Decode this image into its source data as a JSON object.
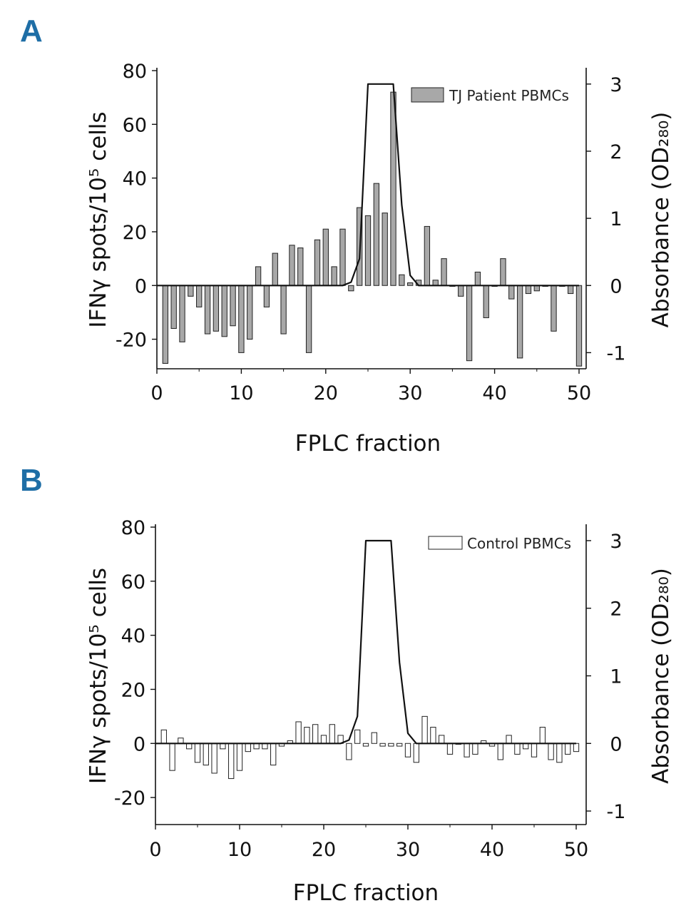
{
  "chart_data": [
    {
      "panel_label": "A",
      "type": "bar",
      "xlabel": "FPLC fraction",
      "ylabel": "IFNγ spots/10⁵ cells",
      "ylabel_right": "Absorbance (OD₂₈₀)",
      "xlim": [
        0,
        50
      ],
      "ylim": [
        -31,
        80
      ],
      "y2lim": [
        -1.24,
        3.2
      ],
      "x_ticks": [
        "0",
        "10",
        "20",
        "30",
        "40",
        "50"
      ],
      "y_ticks": [
        "-20",
        "0",
        "20",
        "40",
        "60",
        "80"
      ],
      "y2_ticks": [
        "-1",
        "0",
        "1",
        "2",
        "3"
      ],
      "legend": {
        "label": "TJ Patient PBMCs",
        "position": "top-right"
      },
      "series": [
        {
          "name": "TJ Patient PBMCs",
          "kind": "bar",
          "fill": "#a8a8a8",
          "x": [
            1,
            2,
            3,
            4,
            5,
            6,
            7,
            8,
            9,
            10,
            11,
            12,
            13,
            14,
            15,
            16,
            17,
            18,
            19,
            20,
            21,
            22,
            23,
            24,
            25,
            26,
            27,
            28,
            29,
            30,
            31,
            32,
            33,
            34,
            35,
            36,
            37,
            38,
            39,
            40,
            41,
            42,
            43,
            44,
            45,
            46,
            47,
            48,
            49,
            50
          ],
          "values": [
            -29,
            -16,
            -21,
            -4,
            -8,
            -18,
            -17,
            -19,
            -15,
            -25,
            -20,
            7,
            -8,
            12,
            -18,
            15,
            14,
            -25,
            17,
            21,
            7,
            21,
            -2,
            29,
            26,
            38,
            27,
            72,
            4,
            1,
            2,
            22,
            2,
            10,
            0,
            -4,
            -28,
            5,
            -12,
            0,
            10,
            -5,
            -27,
            -3,
            -2,
            0,
            -17,
            0,
            -3,
            -30
          ]
        },
        {
          "name": "Absorbance",
          "kind": "line",
          "color": "#111111",
          "x": [
            0,
            22,
            23,
            24,
            25,
            26,
            27,
            28,
            29,
            30,
            31,
            50
          ],
          "values": [
            0,
            0,
            0.05,
            0.4,
            3,
            3,
            3,
            3,
            1.2,
            0.15,
            0,
            0
          ]
        }
      ]
    },
    {
      "panel_label": "B",
      "type": "bar",
      "xlabel": "FPLC fraction",
      "ylabel": "IFNγ spots/10⁵ cells",
      "ylabel_right": "Absorbance (OD₂₈₀)",
      "xlim": [
        0,
        50
      ],
      "ylim": [
        -30,
        80
      ],
      "y2lim": [
        -1.2,
        3.2
      ],
      "x_ticks": [
        "0",
        "10",
        "20",
        "30",
        "40",
        "50"
      ],
      "y_ticks": [
        "-20",
        "0",
        "20",
        "40",
        "60",
        "80"
      ],
      "y2_ticks": [
        "-1",
        "0",
        "1",
        "2",
        "3"
      ],
      "legend": {
        "label": "Control PBMCs",
        "position": "top-right"
      },
      "series": [
        {
          "name": "Control PBMCs",
          "kind": "bar",
          "fill": "#ffffff",
          "x": [
            1,
            2,
            3,
            4,
            5,
            6,
            7,
            8,
            9,
            10,
            11,
            12,
            13,
            14,
            15,
            16,
            17,
            18,
            19,
            20,
            21,
            22,
            23,
            24,
            25,
            26,
            27,
            28,
            29,
            30,
            31,
            32,
            33,
            34,
            35,
            36,
            37,
            38,
            39,
            40,
            41,
            42,
            43,
            44,
            45,
            46,
            47,
            48,
            49,
            50
          ],
          "values": [
            5,
            -10,
            2,
            -2,
            -7,
            -8,
            -11,
            -2,
            -13,
            -10,
            -3,
            -2,
            -2,
            -8,
            -1,
            1,
            8,
            6,
            7,
            3,
            7,
            3,
            -6,
            5,
            -1,
            4,
            -1,
            -1,
            -1,
            -5,
            -7,
            10,
            6,
            3,
            -4,
            0,
            -5,
            -4,
            1,
            -1,
            -6,
            3,
            -4,
            -2,
            -5,
            6,
            -6,
            -7,
            -4,
            -3
          ]
        },
        {
          "name": "Absorbance",
          "kind": "line",
          "color": "#111111",
          "x": [
            0,
            22,
            23,
            24,
            25,
            26,
            27,
            28,
            29,
            30,
            31,
            50
          ],
          "values": [
            0,
            0,
            0.05,
            0.4,
            3,
            3,
            3,
            3,
            1.2,
            0.15,
            0,
            0
          ]
        }
      ]
    }
  ]
}
